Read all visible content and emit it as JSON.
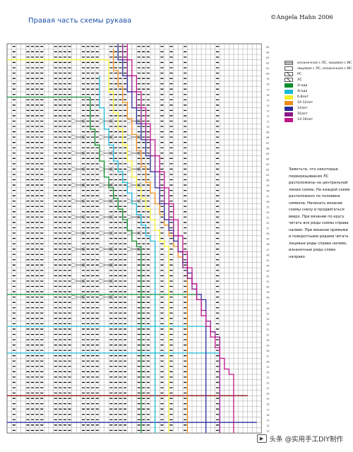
{
  "header": {
    "title": "Правая часть схемы рукава",
    "copyright": "©Angela Hahn 2006"
  },
  "legend": {
    "items": [
      {
        "label": "изнаночная с ЛС, лицевая с ИС",
        "color": "#222222",
        "style": "dash"
      },
      {
        "label": "лицевая с ЛС, изнаночная с ИС",
        "color": "#222222",
        "style": "empty"
      },
      {
        "label": "РС",
        "color": "#888888",
        "style": "cross"
      },
      {
        "label": "ЛС",
        "color": "#888888",
        "style": "cross"
      },
      {
        "label": "2года",
        "color": "#0a8c2a",
        "style": "fill"
      },
      {
        "label": "4года",
        "color": "#19b8d8",
        "style": "fill"
      },
      {
        "label": "6-8лет",
        "color": "#f4ef2a",
        "style": "fill"
      },
      {
        "label": "10-12лет",
        "color": "#f08a1c",
        "style": "fill"
      },
      {
        "label": "14лет",
        "color": "#2a2a9a",
        "style": "fill"
      },
      {
        "label": "16лет",
        "color": "#8a1a8a",
        "style": "fill"
      },
      {
        "label": "14-16лет",
        "color": "#c0168a",
        "style": "fill"
      }
    ]
  },
  "note": {
    "text": "Заметьте, что некоторые перекрещивания ЛС расположены на центральной линии схемы. На каждой схеме расположено по половине символа. Начинать вязание схемы снизу и продвигаться вверх. При вязании по кругу читать все ряды схемы справа налево. При вязании прямыми и поворотными рядами читать лицевые ряды справа налево, изнаночные ряды слева направо."
  },
  "chart_data": {
    "type": "knitting_chart",
    "columns": 55,
    "rows": 73,
    "row_numbers": [
      "85",
      "84",
      "83",
      "82",
      "81",
      "80",
      "79",
      "78",
      "77",
      "76",
      "75",
      "74",
      "73",
      "72",
      "71",
      "70",
      "69",
      "68",
      "67",
      "66",
      "65",
      "64",
      "63",
      "62",
      "61",
      "60",
      "59",
      "58",
      "57",
      "56",
      "55",
      "54",
      "53",
      "52",
      "51",
      "50",
      "49",
      "48",
      "47",
      "46",
      "45",
      "44",
      "43",
      "42",
      "41",
      "40",
      "39",
      "38",
      "37",
      "36",
      "35",
      "34",
      "33",
      "32",
      "31",
      "30",
      "29",
      "28",
      "27",
      "26",
      "25",
      "24",
      "23",
      "22",
      "21",
      "20",
      "19",
      "18",
      "17",
      "16",
      "15",
      "14",
      "13"
    ],
    "size_colors": {
      "2года": "#0a8c2a",
      "4года": "#19b8d8",
      "6-8лет": "#f4ef2a",
      "10-12лет": "#f08a1c",
      "14лет": "#2a2a9a",
      "16лет": "#8a1a8a",
      "14-16лет": "#c0168a",
      "base": "#8a1010"
    },
    "dash_columns": [
      1,
      4,
      5,
      6,
      7,
      10,
      11,
      12,
      13,
      16,
      17,
      18,
      19,
      22,
      23,
      24,
      25,
      28,
      29,
      30,
      33,
      35,
      38,
      45
    ],
    "size_outlines": [
      {
        "size": "2года",
        "top_row": 10,
        "start_col": 18,
        "steps": [
          [
            6,
            1
          ],
          [
            3,
            1
          ],
          [
            3,
            1
          ],
          [
            3,
            1
          ],
          [
            2,
            1
          ],
          [
            2,
            1
          ],
          [
            2,
            1
          ],
          [
            2,
            1
          ],
          [
            2,
            1
          ],
          [
            2,
            1
          ],
          [
            1,
            1
          ]
        ]
      },
      {
        "size": "4года",
        "top_row": 6,
        "start_col": 20,
        "steps": [
          [
            6,
            1
          ],
          [
            4,
            1
          ],
          [
            3,
            1
          ],
          [
            3,
            1
          ],
          [
            2,
            1
          ],
          [
            2,
            1
          ],
          [
            2,
            1
          ],
          [
            2,
            1
          ],
          [
            2,
            1
          ],
          [
            2,
            1
          ],
          [
            2,
            1
          ],
          [
            1,
            1
          ]
        ]
      },
      {
        "size": "6-8лет",
        "top_row": 3,
        "start_col": 22,
        "steps": [
          [
            6,
            1
          ],
          [
            4,
            1
          ],
          [
            3,
            1
          ],
          [
            3,
            1
          ],
          [
            3,
            1
          ],
          [
            3,
            1
          ],
          [
            2,
            1
          ],
          [
            2,
            1
          ],
          [
            2,
            1
          ],
          [
            2,
            1
          ],
          [
            2,
            1
          ],
          [
            2,
            1
          ],
          [
            1,
            1
          ]
        ]
      },
      {
        "size": "10-12лет",
        "top_row": 1,
        "start_col": 23,
        "steps": [
          [
            4,
            1
          ],
          [
            3,
            1
          ],
          [
            3,
            1
          ],
          [
            3,
            1
          ],
          [
            3,
            1
          ],
          [
            3,
            1
          ],
          [
            3,
            1
          ],
          [
            3,
            1
          ],
          [
            2,
            1
          ],
          [
            2,
            1
          ],
          [
            2,
            1
          ],
          [
            2,
            1
          ],
          [
            2,
            1
          ],
          [
            2,
            1
          ],
          [
            2,
            1
          ],
          [
            1,
            1
          ]
        ]
      },
      {
        "size": "14лет",
        "top_row": 0,
        "start_col": 24,
        "steps": [
          [
            3,
            1
          ],
          [
            3,
            1
          ],
          [
            3,
            1
          ],
          [
            3,
            1
          ],
          [
            3,
            1
          ],
          [
            3,
            1
          ],
          [
            3,
            1
          ],
          [
            3,
            1
          ],
          [
            3,
            1
          ],
          [
            3,
            1
          ],
          [
            3,
            1
          ],
          [
            2,
            1
          ],
          [
            2,
            1
          ],
          [
            2,
            1
          ],
          [
            2,
            1
          ],
          [
            2,
            1
          ],
          [
            2,
            1
          ],
          [
            2,
            1
          ],
          [
            1,
            1
          ]
        ]
      },
      {
        "size": "16лет",
        "top_row": 0,
        "start_col": 25,
        "steps": [
          [
            3,
            1
          ],
          [
            3,
            1
          ],
          [
            3,
            1
          ],
          [
            3,
            1
          ],
          [
            3,
            1
          ],
          [
            3,
            1
          ],
          [
            3,
            1
          ],
          [
            3,
            1
          ],
          [
            3,
            1
          ],
          [
            3,
            1
          ],
          [
            3,
            1
          ],
          [
            3,
            1
          ],
          [
            3,
            1
          ],
          [
            3,
            1
          ],
          [
            2,
            1
          ],
          [
            2,
            1
          ],
          [
            2,
            1
          ],
          [
            2,
            1
          ],
          [
            2,
            1
          ],
          [
            2,
            1
          ],
          [
            1,
            1
          ]
        ]
      },
      {
        "size": "14-16лет",
        "top_row": 0,
        "start_col": 26,
        "steps": [
          [
            3,
            1
          ],
          [
            3,
            1
          ],
          [
            3,
            1
          ],
          [
            3,
            1
          ],
          [
            3,
            1
          ],
          [
            3,
            1
          ],
          [
            3,
            1
          ],
          [
            3,
            1
          ],
          [
            3,
            1
          ],
          [
            3,
            1
          ],
          [
            3,
            1
          ],
          [
            3,
            1
          ],
          [
            3,
            1
          ],
          [
            3,
            1
          ],
          [
            3,
            1
          ],
          [
            3,
            1
          ],
          [
            3,
            1
          ],
          [
            2,
            1
          ],
          [
            2,
            1
          ],
          [
            2,
            1
          ],
          [
            2,
            1
          ],
          [
            2,
            1
          ],
          [
            1,
            1
          ]
        ]
      }
    ],
    "horizontal_lines": [
      {
        "size": "6-8лет",
        "row": 3,
        "from_col": 0,
        "to_col": 22
      },
      {
        "size": "2года",
        "row": 10,
        "from_col": 0,
        "to_col": 18
      },
      {
        "size": "2года",
        "row": 47,
        "from_col": 0,
        "to_col": 42
      },
      {
        "size": "4года",
        "row": 53,
        "from_col": 0,
        "to_col": 44
      },
      {
        "size": "4года",
        "row": 58,
        "from_col": 0,
        "to_col": 46
      },
      {
        "size": "base",
        "row": 66,
        "from_col": 0,
        "to_col": 52
      },
      {
        "size": "14лет",
        "row": 71,
        "from_col": 0,
        "to_col": 54
      }
    ]
  },
  "watermark": {
    "text": "头条 @实用手工DIY制作"
  }
}
